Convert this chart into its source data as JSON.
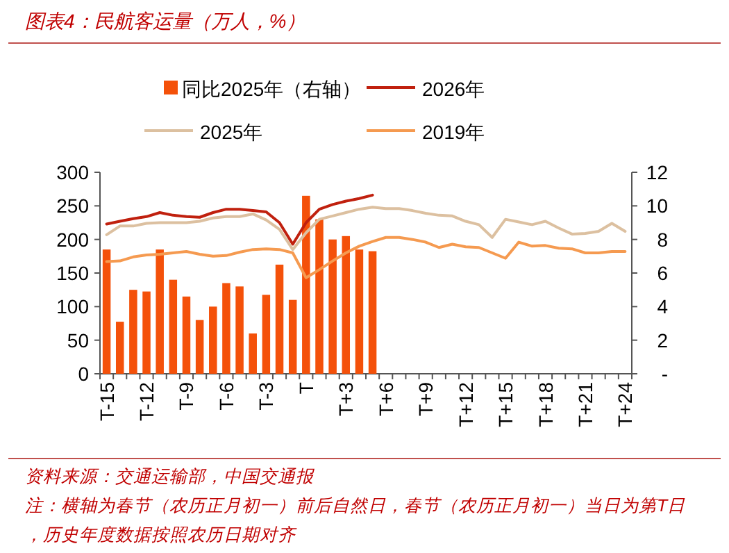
{
  "chart_data": {
    "type": "line",
    "title": "图表4：民航客运量（万人，%）",
    "categories": [
      "T-15",
      null,
      null,
      "T-12",
      null,
      null,
      "T-9",
      null,
      null,
      "T-6",
      null,
      null,
      "T-3",
      null,
      null,
      "T",
      null,
      null,
      "T+3",
      null,
      null,
      "T+6",
      null,
      null,
      "T+9",
      null,
      null,
      "T+12",
      null,
      null,
      "T+15",
      null,
      null,
      "T+18",
      null,
      null,
      "T+21",
      null,
      null,
      "T+24"
    ],
    "series": [
      {
        "name": "同比2025年（右轴）",
        "type": "bar",
        "axis": "y2",
        "color": "#f4510a",
        "values": [
          7.4,
          3.1,
          5.0,
          4.9,
          7.4,
          5.6,
          4.6,
          3.2,
          4.0,
          5.4,
          5.2,
          2.4,
          4.7,
          6.5,
          4.4,
          10.6,
          9.2,
          8.0,
          8.2,
          7.4,
          7.3,
          null,
          null,
          null,
          null,
          null,
          null,
          null,
          null,
          null,
          null,
          null,
          null,
          null,
          null,
          null,
          null,
          null,
          null,
          null
        ]
      },
      {
        "name": "2026年",
        "color": "#c0200e",
        "values": [
          223,
          227,
          231,
          234,
          240,
          236,
          234,
          233,
          240,
          245,
          245,
          243,
          241,
          225,
          193,
          225,
          245,
          252,
          257,
          261,
          266,
          null,
          null,
          null,
          null,
          null,
          null,
          null,
          null,
          null,
          null,
          null,
          null,
          null,
          null,
          null,
          null,
          null,
          null,
          null
        ]
      },
      {
        "name": "2025年",
        "color": "#dcc0a0",
        "values": [
          207,
          220,
          220,
          224,
          225,
          225,
          225,
          227,
          232,
          234,
          234,
          238,
          229,
          215,
          185,
          210,
          230,
          235,
          240,
          245,
          248,
          246,
          246,
          243,
          239,
          236,
          235,
          227,
          222,
          203,
          230,
          226,
          222,
          227,
          217,
          208,
          209,
          212,
          224,
          212
        ]
      },
      {
        "name": "2019年",
        "color": "#f59a50",
        "values": [
          167,
          168,
          174,
          177,
          178,
          180,
          182,
          178,
          175,
          176,
          181,
          185,
          186,
          185,
          180,
          143,
          155,
          168,
          180,
          190,
          197,
          203,
          203,
          200,
          196,
          188,
          193,
          189,
          188,
          180,
          172,
          196,
          190,
          191,
          187,
          186,
          180,
          180,
          182,
          182
        ]
      }
    ],
    "ylim": [
      0,
      300
    ],
    "yticks": [
      0,
      50,
      100,
      150,
      200,
      250,
      300
    ],
    "y2lim": [
      0,
      12
    ],
    "y2ticks": [
      {
        "value": 0,
        "label": "-"
      },
      2,
      4,
      6,
      8,
      10,
      12
    ],
    "legend": "top",
    "grid": false,
    "marker": "none",
    "line_style": "solid",
    "annotations": [
      "资料来源：交通运输部，中国交通报",
      "注：横轴为春节（农历正月初一）前后自然日，春节（农历正月初一）当日为第T日，历史年度数据按照农历日期对齐"
    ]
  }
}
